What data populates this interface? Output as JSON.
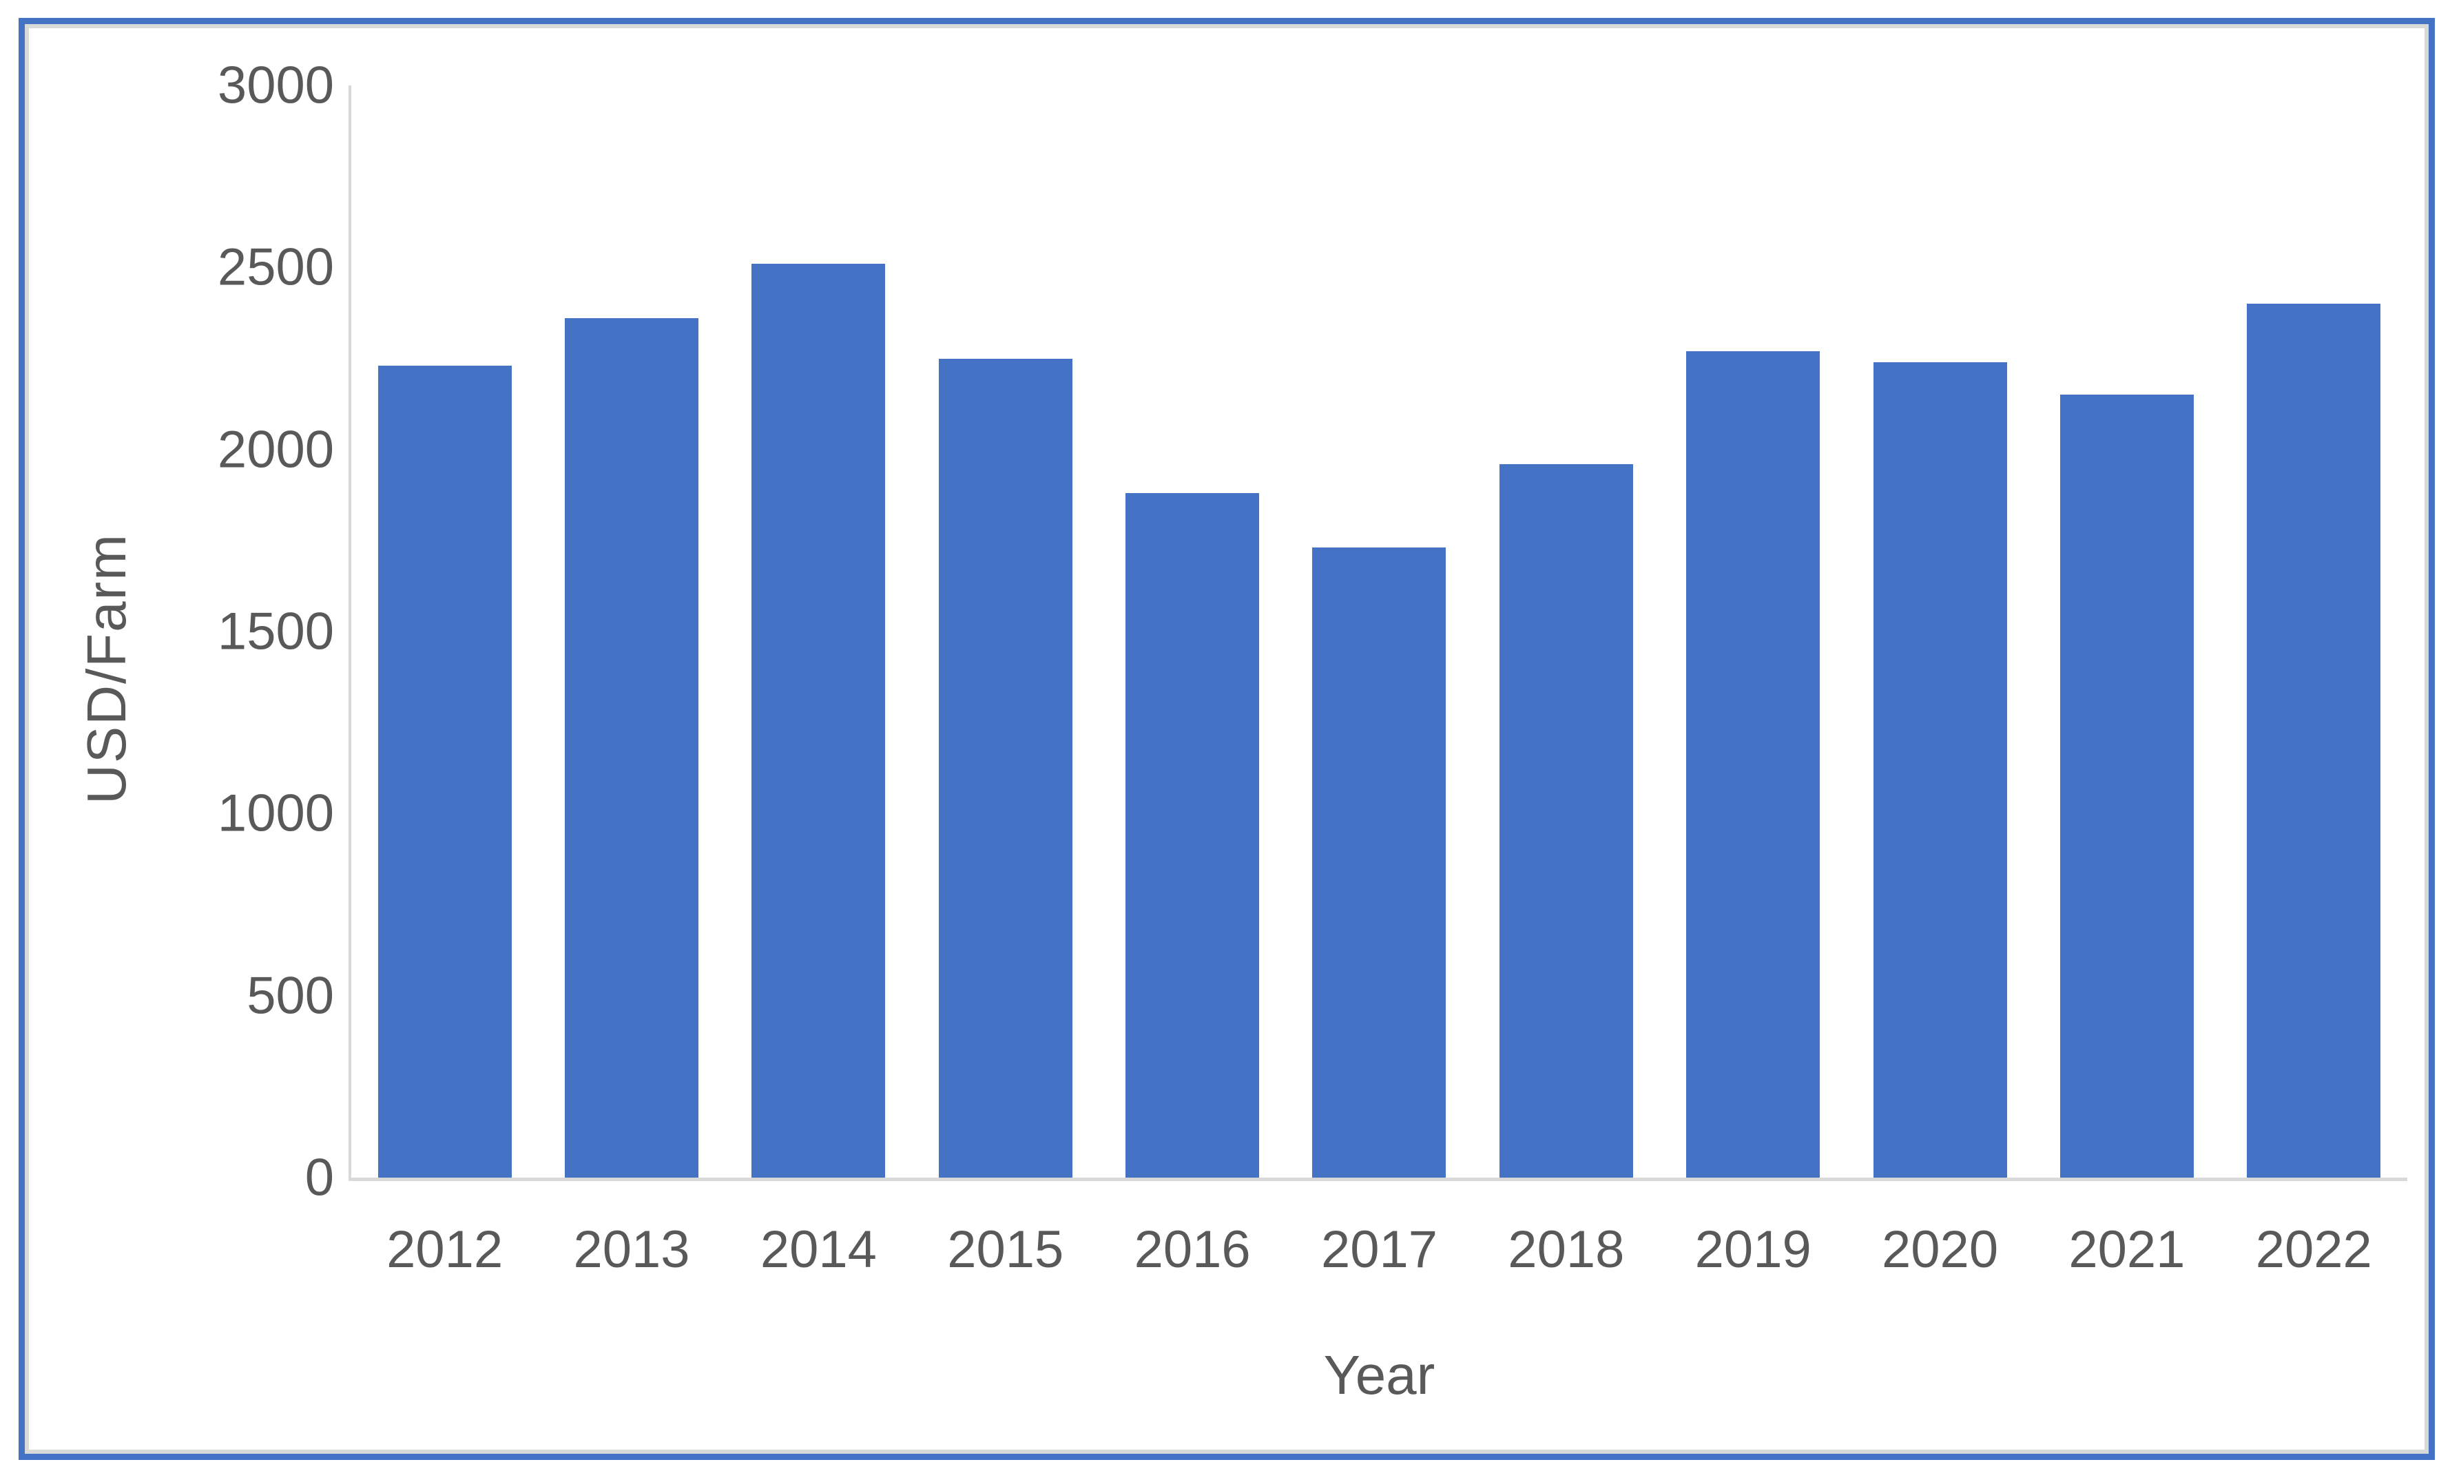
{
  "figure": {
    "background": "#FFFFFF",
    "border_color": "#4472C4",
    "inner_border_color": "#D9D9D9"
  },
  "chart_data": {
    "type": "bar",
    "title": "",
    "categories": [
      "2012",
      "2013",
      "2014",
      "2015",
      "2016",
      "2017",
      "2018",
      "2019",
      "2020",
      "2021",
      "2022"
    ],
    "values": [
      2230,
      2360,
      2510,
      2250,
      1880,
      1730,
      1960,
      2270,
      2240,
      2150,
      2400
    ],
    "xlabel": "Year",
    "ylabel": "USD/Farm",
    "ylim": [
      0,
      3000
    ],
    "y_ticks": [
      3000,
      2500,
      2000,
      1500,
      1000,
      500,
      0
    ],
    "bar_color": "#4472C4",
    "axis_line_color": "#D9D9D9",
    "text_color": "#595959",
    "grid": false,
    "legend": "none"
  }
}
